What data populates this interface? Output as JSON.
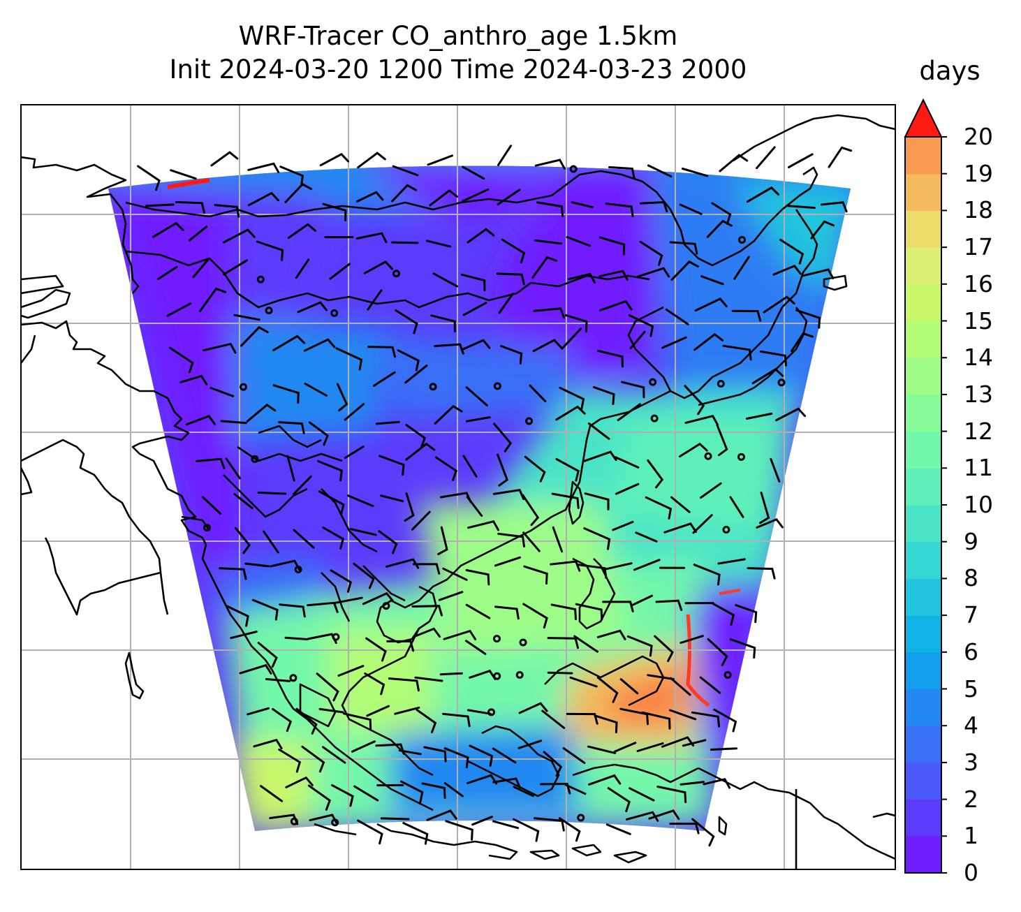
{
  "figure": {
    "title_line1": "WRF-Tracer CO_anthro_age 1.5km",
    "title_line2": "Init 2024-03-20 1200 Time 2024-03-23 2000"
  },
  "colorbar": {
    "unit": "days",
    "extend": "max",
    "ticks": [
      "0",
      "1",
      "2",
      "3",
      "4",
      "5",
      "6",
      "7",
      "8",
      "9",
      "10",
      "11",
      "12",
      "13",
      "14",
      "15",
      "16",
      "17",
      "18",
      "19",
      "20"
    ],
    "colors": [
      "#6f1cff",
      "#5d3bfc",
      "#4a57f9",
      "#376ff5",
      "#2488f1",
      "#119eec",
      "#0fb3e5",
      "#22c5de",
      "#35d6d3",
      "#4ae4c7",
      "#5ff0b9",
      "#73f7aa",
      "#88fb99",
      "#9efd88",
      "#b3fc77",
      "#c8f86a",
      "#dcef72",
      "#eedc6a",
      "#f3b95b",
      "#f89a52",
      "#fb7a44",
      "#fd5a34",
      "#ff3a22",
      "#ff1a12"
    ]
  },
  "map": {
    "land_outline_color": "#000000",
    "gridline_color": "#b0b0b0",
    "wind_barb_color": "#000000",
    "field": "CO_anthro_age",
    "age_zones": [
      {
        "region": "north",
        "typical_days": 1.5
      },
      {
        "region": "central",
        "typical_days": 3
      },
      {
        "region": "east",
        "typical_days": 7
      },
      {
        "region": "south",
        "typical_days": 10
      },
      {
        "region": "southeast-edge",
        "typical_days": 16
      }
    ]
  }
}
